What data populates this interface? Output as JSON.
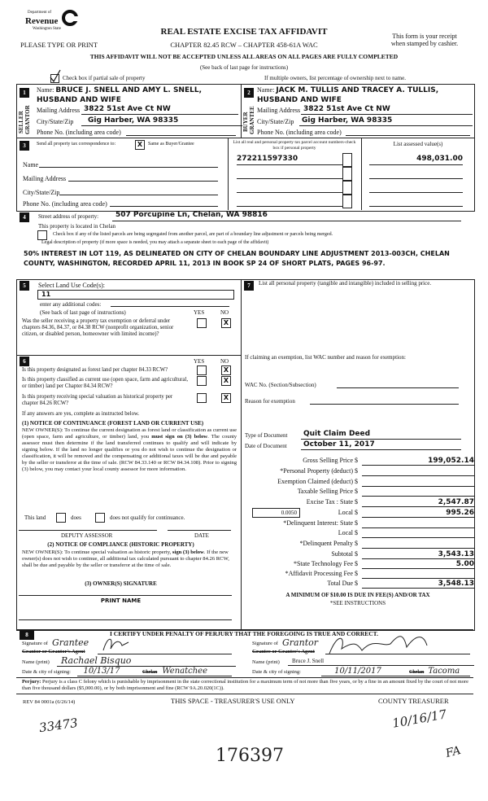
{
  "header": {
    "logo_text": [
      "Department of",
      "Revenue",
      "Washington State"
    ],
    "title": "REAL ESTATE EXCISE TAX AFFIDAVIT",
    "please_type": "PLEASE TYPE OR PRINT",
    "chapter": "CHAPTER 82.45 RCW – CHAPTER 458-61A WAC",
    "receipt_note_1": "This form is your receipt",
    "receipt_note_2": "when stamped by cashier.",
    "warning": "THIS AFFIDAVIT WILL NOT BE ACCEPTED UNLESS ALL AREAS ON ALL PAGES ARE FULLY COMPLETED",
    "see_back": "(See back of last page for instructions)",
    "partial_sale_label": "Check box if partial sale of property",
    "partial_sale_checked": true,
    "multiple_owners_note": "If multiple owners, list percentage of ownership next to name."
  },
  "seller": {
    "number": "1",
    "side_label": "SELLER GRANTOR",
    "name_label": "Name:",
    "name": "BRUCE J. SNELL AND AMY L. SNELL, HUSBAND AND WIFE",
    "mailing_label": "Mailing Address",
    "mailing": "3822 51st Ave Ct NW",
    "city_label": "City/State/Zip",
    "city": "Gig Harber, WA 98335",
    "phone_label": "Phone No. (including area code)"
  },
  "buyer": {
    "number": "2",
    "side_label": "BUYER GRANTEE",
    "name_label": "Name:",
    "name": "JACK M. TULLIS AND TRACEY A. TULLIS, HUSBAND AND WIFE",
    "mailing_label": "Mailing Address",
    "mailing": "3822 51st Ave Ct NW",
    "city_label": "City/State/Zip",
    "city": "Gig Harber, WA 98335",
    "phone_label": "Phone No. (including area code)"
  },
  "section3": {
    "number": "3",
    "send_label": "Send all property tax correspondence to:",
    "same_as_buyer_mark": "X",
    "same_as_buyer_label": "Same as Buyer/Grantee",
    "name_label": "Name",
    "mailing_label": "Mailing Address",
    "city_label": "City/State/Zip",
    "phone_label": "Phone No. (including area code)",
    "parcel_header": "List all real and personal property tax parcel account numbers-check box if personal property",
    "assessed_header": "List assessed value(s)",
    "parcel": "272211597330",
    "assessed": "498,031.00"
  },
  "section4": {
    "number": "4",
    "street_label": "Street address of property:",
    "street": "507 Porcupine Ln, Chelan, WA 98816",
    "located_in": "This property is located in Chelan",
    "segregated_label": "Check box if any of the listed parcels are being segregated from another parcel, are part of a boundary line adjustment or parcels being merged.",
    "legal_label": "Legal description of property (if more space is needed, you may attach a separate sheet to each page of the affidavit)",
    "legal_description": "50% INTEREST IN LOT 119, AS DELINEATED ON CITY OF CHELAN BOUNDARY LINE ADJUSTMENT 2013-003CH, CHELAN COUNTY, WASHINGTON, RECORDED APRIL 11, 2013 IN BOOK SP 24 OF SHORT PLATS, PAGES 96-97."
  },
  "section5": {
    "number": "5",
    "land_use_label": "Select Land Use Code(s):",
    "land_use_code": "11",
    "additional_label": "enter any additional codes:",
    "see_back": "(See back of last page of instructions)",
    "yes": "YES",
    "no": "NO",
    "exemption_question": "Was the seller receiving a property tax exemption or deferral under chapters 84.36, 84.37, or 84.38 RCW (nonprofit organization, senior citizen, or disabled person, homeowner with limited income)?",
    "exemption_answer": "X"
  },
  "section6": {
    "number": "6",
    "yes": "YES",
    "no": "NO",
    "questions": [
      {
        "text": "Is this property designated as forest land per chapter 84.33 RCW?",
        "no_mark": "X"
      },
      {
        "text": "Is this property classified as current use (open space, farm and agricultural, or timber) land per Chapter 84.34 RCW?",
        "no_mark": "X"
      },
      {
        "text": "Is this property receiving special valuation as historical property per chapter 84.26 RCW?",
        "no_mark": "X"
      }
    ],
    "if_yes": "If any answers are yes, complete as instructed below.",
    "notice1_title": "(1) NOTICE OF CONTINUANCE (FOREST LAND OR CURRENT USE)",
    "notice1_text_a": "NEW OWNER(S): To continue the current designation as forest land or classification as current use (open space, farm and agriculture, or timber) land, you",
    "notice1_bold": "must sign on (3) below",
    "notice1_text_b": ". The county assessor must then determine if the land transferred continues to qualify and will indicate by signing below. If the land no longer qualifies or you do not wish to continue the designation or classification, it will be removed and the compensating or additional taxes will be due and payable by the seller or transferor at the time of sale. (RCW 84.33.140 or RCW 84.34.108). Prior to signing (3) below, you may contact your local county assessor for more information.",
    "this_land": "This land",
    "does": "does",
    "does_not": "does not qualify for continuance.",
    "deputy_assessor": "DEPUTY ASSESSOR",
    "date": "DATE",
    "notice2_title": "(2) NOTICE OF COMPLIANCE (HISTORIC PROPERTY)",
    "notice2_text_a": "NEW OWNER(S): To continue special valuation as historic property,",
    "notice2_bold": "sign (3) below",
    "notice2_text_b": ". If the new owner(s) does not wish to continue, all additional tax calculated pursuant to chapter 84.26 RCW, shall be due and payable by the seller or transferor at the time of sale.",
    "owner_signature": "(3) OWNER(S) SIGNATURE",
    "print_name": "PRINT NAME"
  },
  "section7": {
    "number": "7",
    "personal_property_label": "List all personal property (tangible and intangible) included in selling price.",
    "exemption_label": "If claiming an exemption, list WAC number and reason for exemption:",
    "wac_label": "WAC No. (Section/Subsection)",
    "reason_label": "Reason for exemption",
    "doc_type_label": "Type of Document",
    "doc_type": "Quit Claim Deed",
    "doc_date_label": "Date of Document",
    "doc_date": "October 11, 2017",
    "local_rate": "0.0050",
    "rows": [
      {
        "label": "Gross Selling Price  $",
        "value": "199,052.14"
      },
      {
        "label": "*Personal Property (deduct)  $",
        "value": ""
      },
      {
        "label": "Exemption Claimed (deduct)  $",
        "value": ""
      },
      {
        "label": "Taxable Selling Price  $",
        "value": ""
      },
      {
        "label": "Excise Tax :  State  $",
        "value": "2,547.87"
      },
      {
        "label": "Local  $",
        "value": "995.26"
      },
      {
        "label": "*Delinquent Interest:  State  $",
        "value": ""
      },
      {
        "label": "Local  $",
        "value": ""
      },
      {
        "label": "*Delinquent Penalty  $",
        "value": ""
      },
      {
        "label": "Subtotal  $",
        "value": "3,543.13"
      },
      {
        "label": "*State Technology Fee  $",
        "value": "5.00"
      },
      {
        "label": "*Affidavit Processing Fee  $",
        "value": ""
      },
      {
        "label": "Total Due  $",
        "value": "3,548.13"
      }
    ],
    "minimum_note": "A MINIMUM OF $10.00 IS DUE IN FEE(S) AND/OR TAX",
    "see_instructions": "*SEE INSTRUCTIONS"
  },
  "section8": {
    "number": "8",
    "certify": "I CERTIFY UNDER PENALTY OF PERJURY THAT THE FOREGOING IS TRUE AND CORRECT.",
    "signature_of": "Signature of",
    "grantor_agent_label": "Grantor or Grantor's Agent",
    "grantee_agent_label": "Grantee or Grantee's Agent",
    "name_print_label": "Name (print)",
    "date_city_label": "Date & city of signing:",
    "left_handwritten_role": "Grantee",
    "left_name": "Rachael Bisquo",
    "left_date": "10/13/17",
    "left_city_struck": "Chelan",
    "left_city": "Wenatchee",
    "right_handwritten_role": "Grantor",
    "right_name": "Bruce J. Snell",
    "right_date": "10/11/2017",
    "right_city_struck": "Chelan",
    "right_city": "Tacoma"
  },
  "footer": {
    "perjury_bold": "Perjury:",
    "perjury_text": "Perjury is a class C felony which is punishable by imprisonment in the state correctional institution for a maximum term of not more than five years, or by a fine in an amount fixed by the court of not more than five thousand dollars ($5,000.00), or by both imprisonment and fine (RCW 9A.20.020(1C)).",
    "rev": "REV 84 0001a (6/26/14)",
    "treasurer_space": "THIS SPACE - TREASURER'S USE ONLY",
    "county_treasurer": "COUNTY TREASURER"
  },
  "handwritten": {
    "left_number": "33473",
    "center_number": "176397",
    "date": "10/16/17",
    "initials": "FA"
  }
}
